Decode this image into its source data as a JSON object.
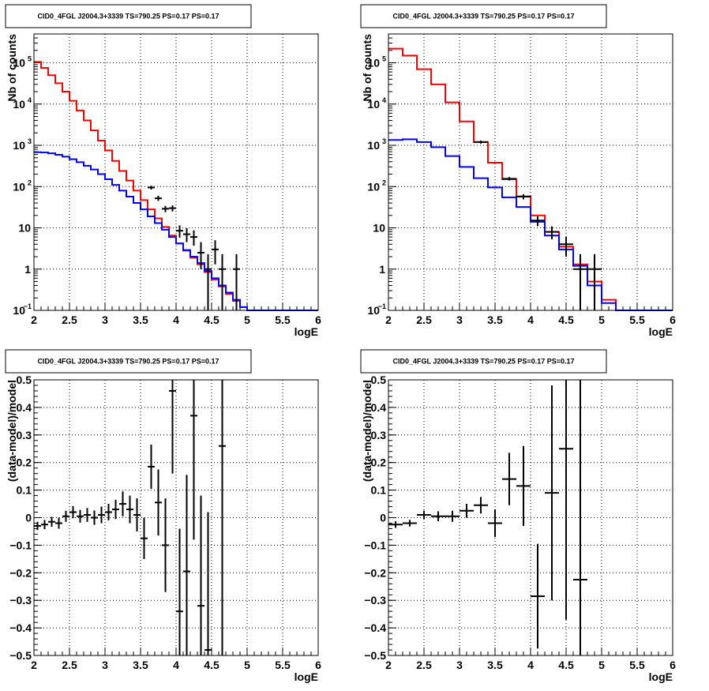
{
  "chart_data": [
    {
      "type": "line",
      "title": "CID0_4FGL J2004.3+3339 TS=790.25 PS=0.17 PS=0.17",
      "xlabel": "logE",
      "ylabel": "Nb of counts",
      "xlim": [
        2,
        6
      ],
      "ylim": [
        0.1,
        500000
      ],
      "yscale": "log",
      "grid": true,
      "xticks": [
        "2",
        "2.5",
        "3",
        "3.5",
        "4",
        "4.5",
        "5",
        "5.5",
        "6"
      ],
      "yticks": [
        {
          "v": 0.1,
          "base": "10",
          "exp": "−1"
        },
        {
          "v": 1,
          "base": "1",
          "exp": ""
        },
        {
          "v": 10,
          "base": "10",
          "exp": ""
        },
        {
          "v": 100,
          "base": "10",
          "exp": "2"
        },
        {
          "v": 1000,
          "base": "10",
          "exp": "3"
        },
        {
          "v": 10000,
          "base": "10",
          "exp": "4"
        },
        {
          "v": 100000,
          "base": "10",
          "exp": "5"
        }
      ],
      "bin_edges": [
        2,
        2.1,
        2.2,
        2.3,
        2.4,
        2.5,
        2.6,
        2.7,
        2.8,
        2.9,
        3,
        3.1,
        3.2,
        3.3,
        3.4,
        3.5,
        3.6,
        3.7,
        3.8,
        3.9,
        4,
        4.1,
        4.2,
        4.3,
        4.4,
        4.5,
        4.6,
        4.7,
        4.8,
        4.9,
        5,
        5.1,
        5.2,
        5.3,
        5.4,
        5.5,
        5.6,
        5.7,
        5.8,
        5.9,
        6
      ],
      "series": [
        {
          "color": "#ff0000",
          "values": [
            105000,
            75000,
            50000,
            32000,
            20000,
            12000,
            7000,
            4000,
            2300,
            1300,
            750,
            420,
            240,
            140,
            80,
            47,
            28,
            17,
            10.5,
            6.5,
            4.2,
            2.8,
            1.9,
            1.3,
            0.85,
            0.56,
            0.38,
            0.25,
            0.17,
            0.12,
            0.1,
            0.1,
            0.1,
            0.1,
            0.1,
            0.1,
            0.1,
            0.1,
            0.1,
            0.1
          ]
        },
        {
          "color": "#0000ff",
          "values": [
            680,
            670,
            640,
            590,
            530,
            460,
            390,
            320,
            260,
            200,
            150,
            110,
            80,
            57,
            40,
            28,
            19,
            13,
            9,
            6,
            4.2,
            2.9,
            2,
            1.4,
            0.9,
            0.6,
            0.4,
            0.27,
            0.18,
            0.12,
            0.1,
            0.1,
            0.1,
            0.1,
            0.1,
            0.1,
            0.1,
            0.1,
            0.1,
            0.1
          ]
        }
      ],
      "points": [
        {
          "x": 3.65,
          "y": 95,
          "lo": 85,
          "hi": 105
        },
        {
          "x": 3.75,
          "y": 52,
          "lo": 45,
          "hi": 60
        },
        {
          "x": 3.85,
          "y": 29,
          "lo": 24,
          "hi": 34
        },
        {
          "x": 3.95,
          "y": 30,
          "lo": 25,
          "hi": 35
        },
        {
          "x": 4.05,
          "y": 8.5,
          "lo": 5.8,
          "hi": 11.5
        },
        {
          "x": 4.15,
          "y": 7,
          "lo": 4.5,
          "hi": 9.8
        },
        {
          "x": 4.25,
          "y": 6,
          "lo": 3.7,
          "hi": 8.7
        },
        {
          "x": 4.35,
          "y": 2.5,
          "lo": 1,
          "hi": 4.5
        },
        {
          "x": 4.45,
          "y": 1,
          "lo": 0.1,
          "hi": 2.3
        },
        {
          "x": 4.55,
          "y": 3,
          "lo": 1.3,
          "hi": 5
        },
        {
          "x": 4.65,
          "y": 1,
          "lo": 0.1,
          "hi": 2.3
        },
        {
          "x": 4.85,
          "y": 1,
          "lo": 0.1,
          "hi": 2.3
        }
      ]
    },
    {
      "type": "line",
      "title": "CID0_4FGL J2004.3+3339 TS=790.25 PS=0.17 PS=0.17",
      "xlabel": "logE",
      "ylabel": "Nb of counts",
      "xlim": [
        2,
        6
      ],
      "ylim": [
        0.1,
        500000
      ],
      "yscale": "log",
      "grid": true,
      "xticks": [
        "2",
        "2.5",
        "3",
        "3.5",
        "4",
        "4.5",
        "5",
        "5.5",
        "6"
      ],
      "yticks": [
        {
          "v": 0.1,
          "base": "10",
          "exp": "−1"
        },
        {
          "v": 1,
          "base": "1",
          "exp": ""
        },
        {
          "v": 10,
          "base": "10",
          "exp": ""
        },
        {
          "v": 100,
          "base": "10",
          "exp": "2"
        },
        {
          "v": 1000,
          "base": "10",
          "exp": "3"
        },
        {
          "v": 10000,
          "base": "10",
          "exp": "4"
        },
        {
          "v": 100000,
          "base": "10",
          "exp": "5"
        }
      ],
      "bin_edges": [
        2,
        2.2,
        2.4,
        2.6,
        2.8,
        3,
        3.2,
        3.4,
        3.6,
        3.8,
        4,
        4.2,
        4.4,
        4.6,
        4.8,
        5,
        5.2,
        5.4,
        5.6,
        5.8,
        6
      ],
      "series": [
        {
          "color": "#ff0000",
          "values": [
            220000,
            150000,
            70000,
            30000,
            11000,
            3800,
            1200,
            380,
            150,
            58,
            20,
            8,
            3.5,
            1.3,
            0.5,
            0.18,
            0.1,
            0.1,
            0.1,
            0.1
          ]
        },
        {
          "color": "#0000ff",
          "values": [
            1350,
            1400,
            1200,
            900,
            550,
            300,
            160,
            95,
            55,
            32,
            14,
            6.5,
            3,
            1.2,
            0.4,
            0.15,
            0.1,
            0.1,
            0.1,
            0.1
          ]
        }
      ],
      "points": [
        {
          "x": 3.3,
          "y": 1200,
          "lo": 1100,
          "hi": 1300
        },
        {
          "x": 3.7,
          "y": 155,
          "lo": 140,
          "hi": 170
        },
        {
          "x": 3.9,
          "y": 57,
          "lo": 49,
          "hi": 65
        },
        {
          "x": 4.1,
          "y": 15,
          "lo": 11,
          "hi": 19
        },
        {
          "x": 4.3,
          "y": 8,
          "lo": 5.3,
          "hi": 10.8
        },
        {
          "x": 4.5,
          "y": 4,
          "lo": 2,
          "hi": 6
        },
        {
          "x": 4.7,
          "y": 1,
          "lo": 0.1,
          "hi": 2.3
        },
        {
          "x": 4.9,
          "y": 1,
          "lo": 0.1,
          "hi": 2.3
        }
      ]
    },
    {
      "type": "scatter",
      "title": "CID0_4FGL J2004.3+3339 TS=790.25 PS=0.17 PS=0.17",
      "xlabel": "logE",
      "ylabel": "(data-model)/model",
      "xlim": [
        2,
        6
      ],
      "ylim": [
        -0.5,
        0.5
      ],
      "grid": true,
      "xticks": [
        "2",
        "2.5",
        "3",
        "3.5",
        "4",
        "4.5",
        "5",
        "5.5",
        "6"
      ],
      "yticks": [
        "−0.5",
        "−0.4",
        "−0.3",
        "−0.2",
        "−0.1",
        "0",
        "0.1",
        "0.2",
        "0.3",
        "0.4",
        "0.5"
      ],
      "xerr": 0.05,
      "points": [
        {
          "x": 2.05,
          "y": -0.03,
          "err": 0.015
        },
        {
          "x": 2.15,
          "y": -0.025,
          "err": 0.017
        },
        {
          "x": 2.25,
          "y": -0.015,
          "err": 0.018
        },
        {
          "x": 2.35,
          "y": -0.02,
          "err": 0.02
        },
        {
          "x": 2.45,
          "y": 0.005,
          "err": 0.02
        },
        {
          "x": 2.55,
          "y": 0.02,
          "err": 0.022
        },
        {
          "x": 2.65,
          "y": 0.005,
          "err": 0.023
        },
        {
          "x": 2.75,
          "y": 0.01,
          "err": 0.025
        },
        {
          "x": 2.85,
          "y": 0.0,
          "err": 0.026
        },
        {
          "x": 2.95,
          "y": 0.01,
          "err": 0.03
        },
        {
          "x": 3.05,
          "y": 0.02,
          "err": 0.03
        },
        {
          "x": 3.15,
          "y": 0.03,
          "err": 0.035
        },
        {
          "x": 3.25,
          "y": 0.05,
          "err": 0.045
        },
        {
          "x": 3.35,
          "y": 0.03,
          "err": 0.05
        },
        {
          "x": 3.45,
          "y": 0.01,
          "err": 0.06
        },
        {
          "x": 3.55,
          "y": -0.075,
          "err": 0.075
        },
        {
          "x": 3.65,
          "y": 0.185,
          "err": 0.08
        },
        {
          "x": 3.75,
          "y": 0.055,
          "err": 0.12
        },
        {
          "x": 3.85,
          "y": -0.1,
          "err": 0.17
        },
        {
          "x": 3.95,
          "y": 0.46,
          "err": 0.3
        },
        {
          "x": 4.05,
          "y": -0.34,
          "err": 0.3
        },
        {
          "x": 4.15,
          "y": -0.195,
          "err": 0.35
        },
        {
          "x": 4.25,
          "y": 0.37,
          "err": 0.45
        },
        {
          "x": 4.35,
          "y": -0.32,
          "err": 0.4
        },
        {
          "x": 4.45,
          "y": -0.48,
          "err": 0.5
        },
        {
          "x": 4.65,
          "y": 0.26,
          "err": 0.8
        }
      ]
    },
    {
      "type": "scatter",
      "title": "CID0_4FGL J2004.3+3339 TS=790.25 PS=0.17 PS=0.17",
      "xlabel": "logE",
      "ylabel": "(data-model)/model",
      "xlim": [
        2,
        6
      ],
      "ylim": [
        -0.5,
        0.5
      ],
      "grid": true,
      "xticks": [
        "2",
        "2.5",
        "3",
        "3.5",
        "4",
        "4.5",
        "5",
        "5.5",
        "6"
      ],
      "yticks": [
        "−0.5",
        "−0.4",
        "−0.3",
        "−0.2",
        "−0.1",
        "0",
        "0.1",
        "0.2",
        "0.3",
        "0.4",
        "0.5"
      ],
      "xerr": 0.1,
      "points": [
        {
          "x": 2.1,
          "y": -0.025,
          "err": 0.012
        },
        {
          "x": 2.3,
          "y": -0.02,
          "err": 0.012
        },
        {
          "x": 2.5,
          "y": 0.01,
          "err": 0.015
        },
        {
          "x": 2.7,
          "y": 0.005,
          "err": 0.018
        },
        {
          "x": 2.9,
          "y": 0.005,
          "err": 0.02
        },
        {
          "x": 3.1,
          "y": 0.025,
          "err": 0.025
        },
        {
          "x": 3.3,
          "y": 0.045,
          "err": 0.03
        },
        {
          "x": 3.5,
          "y": -0.02,
          "err": 0.05
        },
        {
          "x": 3.7,
          "y": 0.14,
          "err": 0.095
        },
        {
          "x": 3.9,
          "y": 0.115,
          "err": 0.145
        },
        {
          "x": 4.1,
          "y": -0.285,
          "err": 0.19
        },
        {
          "x": 4.3,
          "y": 0.09,
          "err": 0.39
        },
        {
          "x": 4.5,
          "y": 0.25,
          "err": 0.62
        },
        {
          "x": 4.7,
          "y": -0.225,
          "err": 0.75
        }
      ]
    }
  ]
}
